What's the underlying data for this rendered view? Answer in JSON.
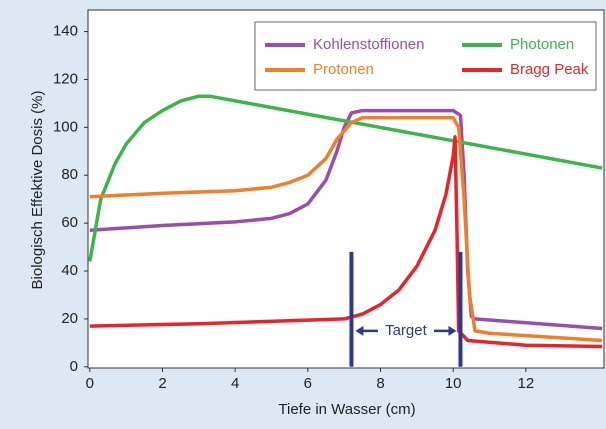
{
  "chart_data": {
    "type": "line",
    "xlabel": "Tiefe in Wasser (cm)",
    "ylabel": "Biologisch Effektive Dosis (%)",
    "xlim": [
      -0.05,
      14.15
    ],
    "ylim": [
      -0.5,
      149
    ],
    "xticks": [
      0,
      2,
      4,
      6,
      8,
      10,
      12
    ],
    "yticks": [
      0,
      20,
      40,
      60,
      80,
      100,
      120,
      140
    ],
    "grid": false,
    "legend": "upper right",
    "series": [
      {
        "name": "Kohlenstoffionen",
        "color": "#9b4ea8",
        "x": [
          0,
          2,
          4,
          5,
          5.5,
          6,
          6.5,
          6.8,
          7,
          7.2,
          7.5,
          10,
          10.2,
          10.3,
          10.4,
          10.5,
          10.6,
          14.1
        ],
        "values": [
          57,
          59,
          60.5,
          62,
          64,
          68,
          78,
          90,
          100,
          106,
          107,
          107,
          105,
          80,
          40,
          21,
          20,
          16
        ]
      },
      {
        "name": "Photonen",
        "color": "#3cb54a",
        "x": [
          0,
          0.3,
          0.7,
          1,
          1.5,
          2,
          2.5,
          3,
          3.3,
          14.1
        ],
        "values": [
          44,
          70,
          85,
          93,
          102,
          107,
          111,
          113,
          113,
          83
        ]
      },
      {
        "name": "Protonen",
        "color": "#f07f2a",
        "x": [
          0,
          2,
          4,
          5,
          5.5,
          6,
          6.5,
          6.8,
          7.2,
          7.5,
          10,
          10.15,
          10.3,
          10.45,
          10.6,
          11,
          14.1
        ],
        "values": [
          71,
          72.5,
          73.5,
          75,
          77,
          80,
          87,
          95,
          102,
          104,
          104,
          100,
          70,
          30,
          15,
          14,
          11
        ]
      },
      {
        "name": "Bragg Peak",
        "color": "#e8242b",
        "x": [
          0,
          3,
          6,
          7,
          7.5,
          8,
          8.5,
          9,
          9.5,
          9.8,
          10,
          10.05,
          10.1,
          10.15,
          10.4,
          12,
          14.1
        ],
        "values": [
          17,
          18,
          19.5,
          20,
          22,
          26,
          32,
          42,
          57,
          72,
          88,
          96,
          60,
          15,
          11,
          9,
          8.5
        ]
      }
    ],
    "target": {
      "label": "Target",
      "x": [
        7.2,
        10.2
      ],
      "height": 48,
      "color": "#2b3a8f"
    }
  }
}
